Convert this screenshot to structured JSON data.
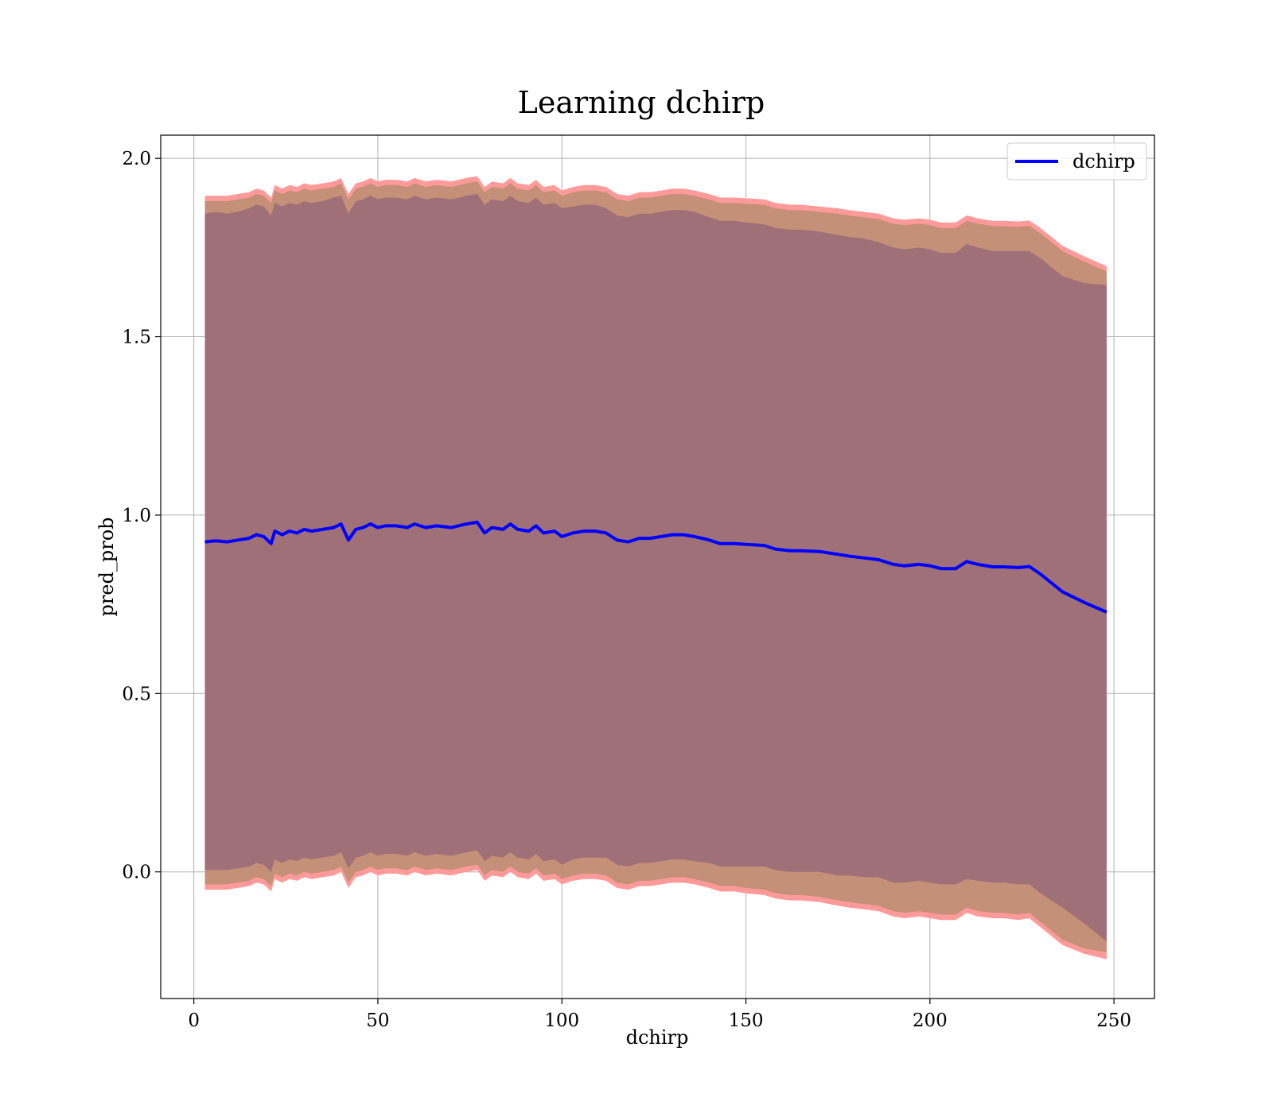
{
  "chart_data": {
    "type": "line",
    "title": "Learning dchirp",
    "xlabel": "dchirp",
    "ylabel": "pred_prob",
    "xlim": [
      -9,
      261
    ],
    "ylim": [
      -0.355,
      2.065
    ],
    "xticks": [
      0,
      50,
      100,
      150,
      200,
      250
    ],
    "xtick_labels": [
      "0",
      "50",
      "100",
      "150",
      "200",
      "250"
    ],
    "yticks": [
      0.0,
      0.5,
      1.0,
      1.5,
      2.0
    ],
    "ytick_labels": [
      "0.0",
      "0.5",
      "1.0",
      "1.5",
      "2.0"
    ],
    "grid": true,
    "legend": {
      "position": "top-right",
      "entries": [
        "dchirp"
      ]
    },
    "colors": {
      "line": "#0000ff",
      "band_outer": "#ff9a9a",
      "band_middle": "#c49078",
      "band_inner": "#a07078"
    },
    "series": [
      {
        "name": "dchirp",
        "x": [
          3,
          6,
          9,
          12,
          15,
          17,
          19,
          21,
          22,
          24,
          26,
          28,
          30,
          32,
          35,
          38,
          40,
          42,
          44,
          46,
          48,
          50,
          52,
          55,
          58,
          60,
          63,
          66,
          70,
          74,
          77,
          79,
          81,
          84,
          86,
          88,
          91,
          93,
          95,
          98,
          100,
          103,
          106,
          109,
          112,
          115,
          118,
          121,
          124,
          127,
          130,
          133,
          136,
          140,
          143,
          147,
          150,
          155,
          158,
          162,
          165,
          170,
          175,
          178,
          182,
          186,
          190,
          193,
          197,
          200,
          203,
          207,
          210,
          213,
          217,
          220,
          224,
          227,
          230,
          236,
          242,
          248
        ],
        "mean": [
          0.925,
          0.928,
          0.925,
          0.93,
          0.935,
          0.945,
          0.94,
          0.92,
          0.955,
          0.945,
          0.955,
          0.95,
          0.96,
          0.955,
          0.96,
          0.965,
          0.975,
          0.93,
          0.96,
          0.965,
          0.975,
          0.965,
          0.97,
          0.97,
          0.965,
          0.975,
          0.965,
          0.97,
          0.965,
          0.975,
          0.98,
          0.95,
          0.965,
          0.96,
          0.975,
          0.96,
          0.955,
          0.97,
          0.95,
          0.955,
          0.94,
          0.95,
          0.955,
          0.955,
          0.95,
          0.93,
          0.925,
          0.935,
          0.935,
          0.94,
          0.945,
          0.945,
          0.94,
          0.93,
          0.92,
          0.92,
          0.918,
          0.915,
          0.905,
          0.9,
          0.9,
          0.898,
          0.89,
          0.885,
          0.88,
          0.875,
          0.862,
          0.858,
          0.862,
          0.858,
          0.85,
          0.85,
          0.87,
          0.862,
          0.855,
          0.855,
          0.853,
          0.856,
          0.835,
          0.785,
          0.755,
          0.728
        ],
        "upper_outer": [
          1.895,
          1.895,
          1.895,
          1.9,
          1.905,
          1.915,
          1.91,
          1.89,
          1.925,
          1.915,
          1.925,
          1.92,
          1.93,
          1.925,
          1.93,
          1.935,
          1.945,
          1.9,
          1.93,
          1.935,
          1.945,
          1.935,
          1.94,
          1.94,
          1.935,
          1.945,
          1.935,
          1.94,
          1.935,
          1.945,
          1.95,
          1.92,
          1.935,
          1.93,
          1.945,
          1.93,
          1.925,
          1.94,
          1.92,
          1.925,
          1.91,
          1.92,
          1.925,
          1.925,
          1.92,
          1.9,
          1.895,
          1.905,
          1.905,
          1.91,
          1.915,
          1.915,
          1.91,
          1.9,
          1.89,
          1.89,
          1.888,
          1.885,
          1.875,
          1.87,
          1.87,
          1.865,
          1.86,
          1.855,
          1.85,
          1.845,
          1.832,
          1.828,
          1.832,
          1.828,
          1.82,
          1.82,
          1.84,
          1.832,
          1.825,
          1.825,
          1.823,
          1.826,
          1.805,
          1.755,
          1.725,
          1.698
        ],
        "upper_middle": [
          1.88,
          1.88,
          1.88,
          1.885,
          1.89,
          1.9,
          1.895,
          1.875,
          1.91,
          1.9,
          1.91,
          1.905,
          1.915,
          1.91,
          1.915,
          1.92,
          1.93,
          1.885,
          1.915,
          1.92,
          1.93,
          1.92,
          1.925,
          1.925,
          1.92,
          1.93,
          1.92,
          1.925,
          1.92,
          1.93,
          1.935,
          1.905,
          1.92,
          1.915,
          1.93,
          1.915,
          1.91,
          1.925,
          1.905,
          1.91,
          1.895,
          1.905,
          1.91,
          1.91,
          1.905,
          1.885,
          1.88,
          1.89,
          1.89,
          1.895,
          1.9,
          1.9,
          1.895,
          1.885,
          1.875,
          1.875,
          1.873,
          1.87,
          1.86,
          1.855,
          1.855,
          1.85,
          1.845,
          1.84,
          1.835,
          1.83,
          1.817,
          1.813,
          1.817,
          1.813,
          1.805,
          1.805,
          1.825,
          1.817,
          1.81,
          1.81,
          1.808,
          1.811,
          1.79,
          1.74,
          1.71,
          1.683
        ],
        "upper_inner": [
          1.845,
          1.85,
          1.845,
          1.85,
          1.86,
          1.87,
          1.865,
          1.84,
          1.875,
          1.865,
          1.875,
          1.87,
          1.88,
          1.875,
          1.88,
          1.89,
          1.895,
          1.845,
          1.88,
          1.885,
          1.895,
          1.885,
          1.89,
          1.89,
          1.885,
          1.895,
          1.885,
          1.89,
          1.885,
          1.895,
          1.9,
          1.87,
          1.885,
          1.88,
          1.895,
          1.88,
          1.875,
          1.89,
          1.87,
          1.875,
          1.86,
          1.865,
          1.87,
          1.87,
          1.86,
          1.84,
          1.835,
          1.845,
          1.845,
          1.85,
          1.855,
          1.855,
          1.85,
          1.835,
          1.825,
          1.825,
          1.82,
          1.815,
          1.805,
          1.8,
          1.8,
          1.795,
          1.785,
          1.78,
          1.775,
          1.765,
          1.75,
          1.745,
          1.75,
          1.745,
          1.735,
          1.735,
          1.76,
          1.75,
          1.74,
          1.74,
          1.74,
          1.74,
          1.72,
          1.67,
          1.65,
          1.645
        ],
        "lower_inner": [
          0.005,
          0.005,
          0.005,
          0.01,
          0.015,
          0.025,
          0.02,
          0.0,
          0.035,
          0.025,
          0.035,
          0.03,
          0.04,
          0.035,
          0.04,
          0.045,
          0.055,
          0.01,
          0.04,
          0.045,
          0.055,
          0.045,
          0.05,
          0.05,
          0.045,
          0.055,
          0.045,
          0.05,
          0.045,
          0.055,
          0.06,
          0.03,
          0.045,
          0.04,
          0.055,
          0.04,
          0.035,
          0.05,
          0.03,
          0.035,
          0.02,
          0.035,
          0.04,
          0.04,
          0.04,
          0.02,
          0.015,
          0.025,
          0.025,
          0.03,
          0.035,
          0.035,
          0.03,
          0.025,
          0.015,
          0.015,
          0.015,
          0.015,
          0.005,
          0.0,
          0.0,
          0.0,
          -0.01,
          -0.01,
          -0.015,
          -0.015,
          -0.03,
          -0.03,
          -0.025,
          -0.03,
          -0.035,
          -0.035,
          -0.02,
          -0.025,
          -0.03,
          -0.03,
          -0.035,
          -0.035,
          -0.06,
          -0.1,
          -0.145,
          -0.195
        ],
        "lower_middle": [
          -0.035,
          -0.035,
          -0.035,
          -0.03,
          -0.025,
          -0.015,
          -0.02,
          -0.04,
          -0.005,
          -0.015,
          -0.005,
          -0.01,
          0.0,
          -0.005,
          0.0,
          0.005,
          0.015,
          -0.03,
          0.0,
          0.005,
          0.015,
          0.005,
          0.01,
          0.01,
          0.005,
          0.015,
          0.005,
          0.01,
          0.005,
          0.015,
          0.02,
          -0.01,
          0.005,
          0.0,
          0.015,
          0.0,
          -0.005,
          0.01,
          -0.01,
          -0.005,
          -0.02,
          -0.01,
          -0.005,
          -0.005,
          -0.01,
          -0.03,
          -0.035,
          -0.025,
          -0.025,
          -0.02,
          -0.015,
          -0.015,
          -0.02,
          -0.03,
          -0.04,
          -0.04,
          -0.045,
          -0.05,
          -0.06,
          -0.065,
          -0.065,
          -0.07,
          -0.08,
          -0.085,
          -0.09,
          -0.095,
          -0.11,
          -0.115,
          -0.11,
          -0.115,
          -0.12,
          -0.12,
          -0.1,
          -0.11,
          -0.115,
          -0.115,
          -0.12,
          -0.115,
          -0.14,
          -0.19,
          -0.215,
          -0.225
        ],
        "lower_outer": [
          -0.05,
          -0.05,
          -0.05,
          -0.045,
          -0.04,
          -0.03,
          -0.035,
          -0.055,
          -0.02,
          -0.03,
          -0.02,
          -0.025,
          -0.015,
          -0.02,
          -0.015,
          -0.01,
          0.0,
          -0.045,
          -0.015,
          -0.01,
          0.0,
          -0.01,
          -0.005,
          -0.005,
          -0.01,
          0.0,
          -0.01,
          -0.005,
          -0.01,
          0.0,
          0.005,
          -0.025,
          -0.01,
          -0.015,
          0.0,
          -0.015,
          -0.02,
          -0.005,
          -0.025,
          -0.02,
          -0.035,
          -0.025,
          -0.02,
          -0.02,
          -0.025,
          -0.045,
          -0.05,
          -0.04,
          -0.04,
          -0.035,
          -0.03,
          -0.03,
          -0.035,
          -0.045,
          -0.055,
          -0.055,
          -0.06,
          -0.065,
          -0.075,
          -0.08,
          -0.08,
          -0.085,
          -0.095,
          -0.1,
          -0.105,
          -0.11,
          -0.125,
          -0.13,
          -0.125,
          -0.13,
          -0.135,
          -0.135,
          -0.115,
          -0.125,
          -0.13,
          -0.13,
          -0.135,
          -0.13,
          -0.155,
          -0.205,
          -0.23,
          -0.245
        ]
      }
    ]
  }
}
